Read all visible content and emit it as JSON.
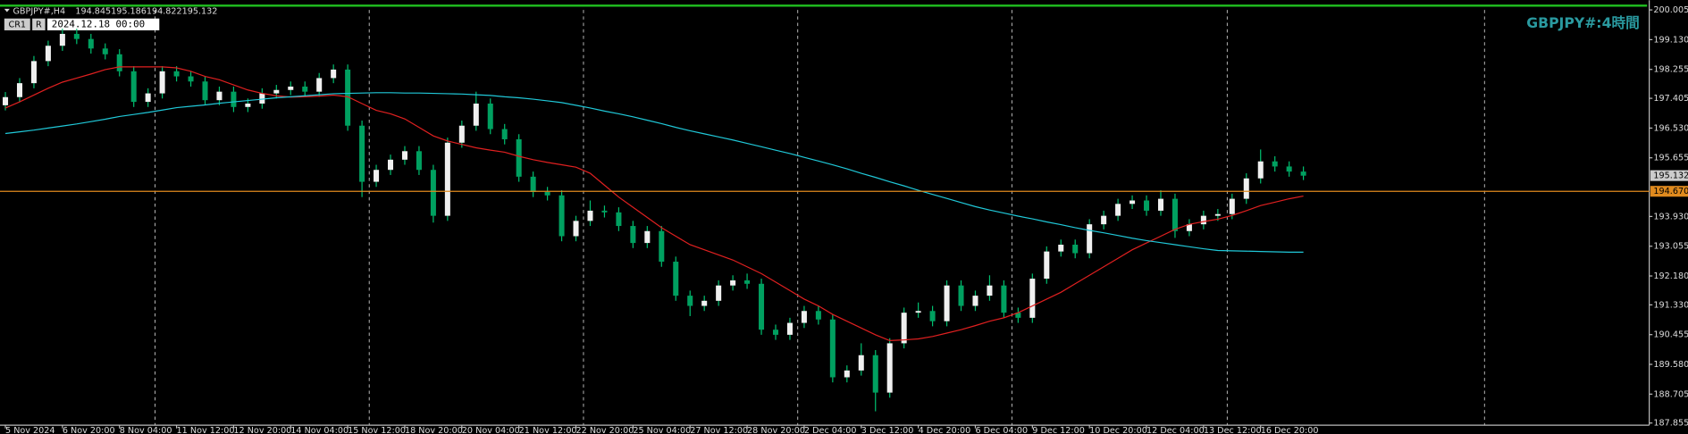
{
  "chart_data": {
    "type": "candlestick",
    "symbol": "GBPJPY#,H4",
    "quote": [
      194.845,
      195.186,
      194.822,
      195.132
    ],
    "buttons": [
      "CR1",
      "R"
    ],
    "date_label": "2024.12.18 00:00",
    "watermark": "GBPJPY#:4時間",
    "ylim": [
      187.855,
      200.005
    ],
    "yticks": [
      200.005,
      {
        "value": 199.13,
        "label": "199.130"
      },
      198.255,
      197.405,
      {
        "value": 196.53,
        "label": "196.530"
      },
      195.655,
      {
        "value": 193.93,
        "label": "193.930"
      },
      193.055,
      {
        "value": 192.18,
        "label": "192.180"
      },
      {
        "value": 191.33,
        "label": "191.330"
      },
      190.455,
      {
        "value": 189.58,
        "label": "189.580"
      },
      188.705,
      187.855
    ],
    "current_price": 195.132,
    "bid_line": {
      "value": 194.67,
      "label": "194.670",
      "color": "#e08a1e"
    },
    "candle_colors": {
      "up": "#f0f0f0",
      "down": "#00a060",
      "wick": "#00c070"
    },
    "categories": [
      "5 Nov 2024",
      null,
      null,
      null,
      "6 Nov 20:00",
      null,
      null,
      null,
      "8 Nov 04:00",
      null,
      null,
      null,
      "11 Nov 12:00",
      null,
      null,
      null,
      "12 Nov 20:00",
      null,
      null,
      null,
      "14 Nov 04:00",
      null,
      null,
      null,
      "15 Nov 12:00",
      null,
      null,
      null,
      "18 Nov 20:00",
      null,
      null,
      null,
      "20 Nov 04:00",
      null,
      null,
      null,
      "21 Nov 12:00",
      null,
      null,
      null,
      "22 Nov 20:00",
      null,
      null,
      null,
      "25 Nov 04:00",
      null,
      null,
      null,
      "27 Nov 12:00",
      null,
      null,
      null,
      "28 Nov 20:00",
      null,
      null,
      null,
      "2 Dec 04:00",
      null,
      null,
      null,
      "3 Dec 12:00",
      null,
      null,
      null,
      "4 Dec 20:00",
      null,
      null,
      null,
      "6 Dec 04:00",
      null,
      null,
      null,
      "9 Dec 12:00",
      null,
      null,
      null,
      "10 Dec 20:00",
      null,
      null,
      null,
      "12 Dec 04:00",
      null,
      null,
      null,
      "13 Dec 12:00",
      null,
      null,
      null,
      "16 Dec 20:00",
      null,
      null,
      null
    ],
    "open": [
      197.2,
      197.44,
      197.85,
      198.5,
      198.95,
      199.3,
      199.15,
      198.87,
      198.7,
      198.2,
      197.3,
      197.55,
      198.2,
      198.05,
      197.9,
      197.35,
      197.6,
      197.15,
      197.25,
      197.55,
      197.65,
      197.75,
      197.6,
      198.0,
      198.25,
      196.6,
      194.95,
      195.3,
      195.6,
      195.85,
      195.3,
      193.95,
      196.1,
      196.6,
      197.25,
      196.5,
      196.2,
      195.1,
      194.65,
      194.55,
      193.35,
      193.8,
      194.1,
      194.05,
      193.65,
      193.15,
      193.5,
      192.6,
      191.6,
      191.3,
      191.45,
      191.9,
      192.05,
      191.95,
      190.6,
      190.45,
      190.8,
      191.15,
      190.9,
      189.2,
      189.4,
      189.85,
      188.75,
      190.2,
      191.1,
      191.15,
      190.85,
      191.9,
      191.3,
      191.6,
      191.9,
      191.1,
      190.95,
      192.1,
      192.9,
      193.1,
      192.85,
      193.7,
      193.95,
      194.3,
      194.4,
      194.1,
      194.45,
      193.5,
      193.7,
      193.95,
      194.0,
      194.45,
      195.05,
      195.55,
      195.4,
      195.25
    ],
    "high": [
      197.59,
      198.0,
      198.65,
      199.1,
      199.45,
      199.45,
      199.3,
      199.02,
      198.85,
      198.35,
      197.7,
      198.35,
      198.35,
      198.2,
      198.05,
      197.75,
      197.75,
      197.4,
      197.7,
      197.8,
      197.9,
      197.9,
      198.15,
      198.4,
      198.4,
      196.75,
      195.45,
      195.75,
      196.0,
      196.0,
      195.45,
      196.25,
      196.75,
      197.6,
      197.4,
      196.65,
      196.35,
      195.25,
      194.8,
      194.7,
      193.95,
      194.4,
      194.25,
      194.2,
      193.8,
      193.65,
      193.65,
      192.75,
      191.75,
      191.6,
      192.05,
      192.2,
      192.25,
      192.1,
      190.75,
      190.95,
      191.3,
      191.3,
      191.05,
      189.55,
      190.2,
      190.0,
      190.35,
      191.25,
      191.4,
      191.3,
      192.05,
      192.05,
      191.75,
      192.2,
      192.05,
      191.25,
      192.25,
      193.05,
      193.25,
      193.25,
      193.85,
      194.1,
      194.45,
      194.55,
      194.55,
      194.7,
      194.6,
      193.85,
      194.1,
      194.15,
      194.6,
      195.2,
      195.9,
      195.7,
      195.55,
      195.4
    ],
    "low": [
      197.05,
      197.29,
      197.7,
      198.35,
      198.8,
      199.0,
      198.72,
      198.55,
      198.05,
      197.15,
      197.15,
      197.4,
      197.9,
      197.75,
      197.2,
      197.2,
      197.0,
      197.0,
      197.1,
      197.4,
      197.5,
      197.45,
      197.45,
      197.85,
      196.45,
      194.5,
      194.8,
      195.15,
      195.45,
      195.15,
      193.75,
      193.8,
      195.95,
      196.45,
      196.35,
      196.05,
      194.95,
      194.5,
      194.4,
      193.2,
      193.2,
      193.65,
      193.9,
      193.5,
      193.0,
      193.0,
      192.45,
      191.45,
      191.0,
      191.15,
      191.3,
      191.75,
      191.8,
      190.45,
      190.3,
      190.3,
      190.65,
      190.75,
      189.05,
      189.05,
      189.25,
      188.2,
      188.6,
      190.05,
      190.95,
      190.7,
      190.7,
      191.15,
      191.15,
      191.45,
      190.95,
      190.8,
      190.8,
      191.95,
      192.75,
      192.7,
      192.7,
      193.55,
      193.8,
      194.15,
      193.95,
      193.95,
      193.3,
      193.35,
      193.55,
      193.8,
      193.85,
      194.3,
      194.9,
      195.25,
      195.1,
      195.0
    ],
    "close": [
      197.44,
      197.85,
      198.5,
      198.95,
      199.3,
      199.15,
      198.87,
      198.7,
      198.2,
      197.3,
      197.55,
      198.2,
      198.05,
      197.9,
      197.35,
      197.6,
      197.15,
      197.25,
      197.55,
      197.65,
      197.75,
      197.6,
      198.0,
      198.25,
      196.6,
      194.95,
      195.3,
      195.6,
      195.85,
      195.3,
      193.95,
      196.1,
      196.6,
      197.25,
      196.5,
      196.2,
      195.1,
      194.65,
      194.55,
      193.35,
      193.8,
      194.1,
      194.05,
      193.65,
      193.15,
      193.5,
      192.6,
      191.6,
      191.3,
      191.45,
      191.9,
      192.05,
      191.95,
      190.6,
      190.45,
      190.8,
      191.15,
      190.9,
      189.2,
      189.4,
      189.85,
      188.75,
      190.2,
      191.1,
      191.15,
      190.85,
      191.9,
      191.3,
      191.6,
      191.9,
      191.1,
      190.95,
      192.1,
      192.9,
      193.1,
      192.85,
      193.7,
      193.95,
      194.3,
      194.4,
      194.1,
      194.45,
      193.5,
      193.7,
      193.95,
      194.0,
      194.45,
      195.05,
      195.55,
      195.4,
      195.25,
      195.13
    ],
    "lines": [
      {
        "color": "#e02020",
        "values": [
          197.12,
          197.3,
          197.5,
          197.7,
          197.88,
          198.0,
          198.12,
          198.25,
          198.33,
          198.33,
          198.33,
          198.33,
          198.3,
          198.2,
          198.05,
          197.95,
          197.8,
          197.65,
          197.55,
          197.48,
          197.44,
          197.45,
          197.47,
          197.5,
          197.45,
          197.25,
          197.05,
          196.95,
          196.8,
          196.55,
          196.3,
          196.15,
          196.05,
          195.95,
          195.88,
          195.82,
          195.7,
          195.6,
          195.52,
          195.45,
          195.38,
          195.2,
          194.85,
          194.5,
          194.2,
          193.9,
          193.6,
          193.35,
          193.1,
          192.95,
          192.8,
          192.65,
          192.45,
          192.25,
          192.0,
          191.75,
          191.5,
          191.3,
          191.05,
          190.85,
          190.65,
          190.45,
          190.28,
          190.3,
          190.33,
          190.4,
          190.5,
          190.6,
          190.72,
          190.85,
          190.95,
          191.1,
          191.3,
          191.5,
          191.7,
          191.95,
          192.2,
          192.45,
          192.7,
          192.95,
          193.15,
          193.35,
          193.55,
          193.7,
          193.78,
          193.85,
          193.96,
          194.1,
          194.25,
          194.35,
          194.45,
          194.53
        ]
      },
      {
        "color": "#20c8d8",
        "values": [
          196.37,
          196.42,
          196.47,
          196.53,
          196.59,
          196.65,
          196.72,
          196.79,
          196.87,
          196.93,
          196.99,
          197.06,
          197.13,
          197.17,
          197.21,
          197.26,
          197.3,
          197.34,
          197.38,
          197.42,
          197.45,
          197.48,
          197.51,
          197.54,
          197.55,
          197.56,
          197.57,
          197.57,
          197.56,
          197.56,
          197.55,
          197.54,
          197.53,
          197.51,
          197.49,
          197.45,
          197.42,
          197.38,
          197.33,
          197.28,
          197.2,
          197.12,
          197.03,
          196.95,
          196.86,
          196.76,
          196.66,
          196.55,
          196.45,
          196.36,
          196.27,
          196.18,
          196.08,
          195.98,
          195.88,
          195.78,
          195.67,
          195.56,
          195.45,
          195.33,
          195.2,
          195.08,
          194.95,
          194.83,
          194.7,
          194.58,
          194.46,
          194.34,
          194.22,
          194.12,
          194.03,
          193.94,
          193.86,
          193.77,
          193.69,
          193.6,
          193.52,
          193.45,
          193.37,
          193.29,
          193.22,
          193.16,
          193.1,
          193.04,
          192.98,
          192.93,
          192.92,
          192.91,
          192.9,
          192.89,
          192.88,
          192.88
        ]
      }
    ]
  }
}
